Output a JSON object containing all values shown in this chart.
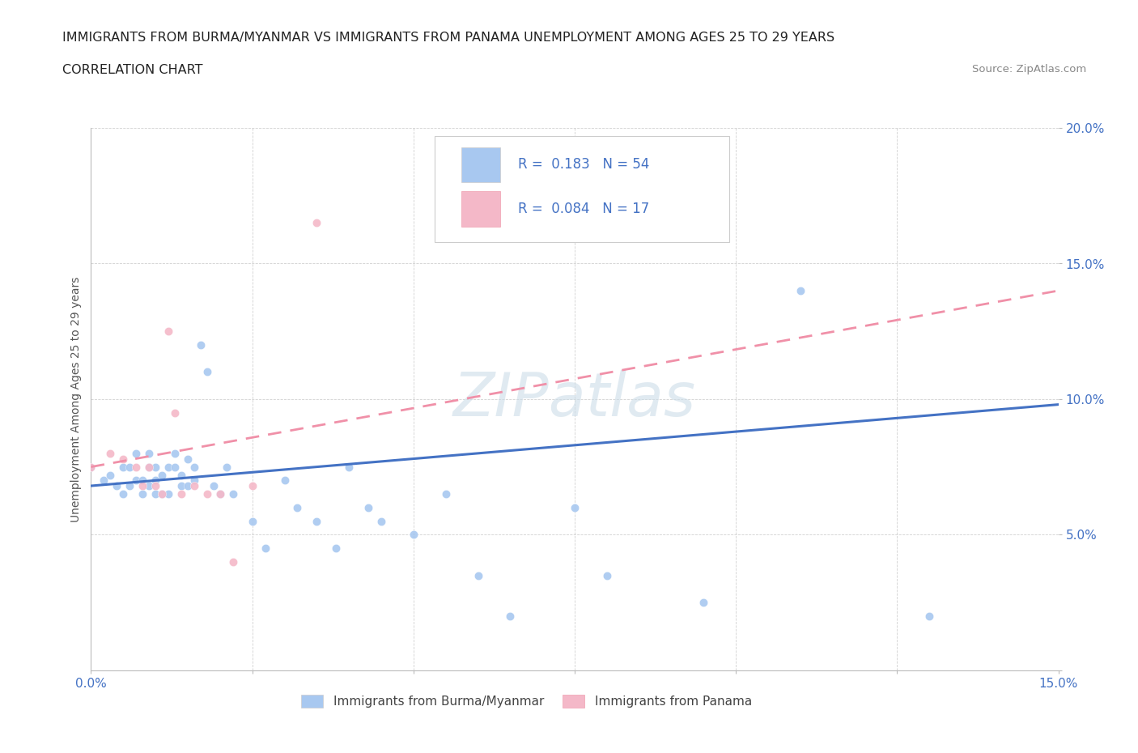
{
  "title_line1": "IMMIGRANTS FROM BURMA/MYANMAR VS IMMIGRANTS FROM PANAMA UNEMPLOYMENT AMONG AGES 25 TO 29 YEARS",
  "title_line2": "CORRELATION CHART",
  "source_text": "Source: ZipAtlas.com",
  "ylabel": "Unemployment Among Ages 25 to 29 years",
  "xlim": [
    0.0,
    0.15
  ],
  "ylim": [
    0.0,
    0.2
  ],
  "xticks": [
    0.0,
    0.025,
    0.05,
    0.075,
    0.1,
    0.125,
    0.15
  ],
  "yticks": [
    0.0,
    0.05,
    0.1,
    0.15,
    0.2
  ],
  "burma_R": 0.183,
  "burma_N": 54,
  "panama_R": 0.084,
  "panama_N": 17,
  "burma_color": "#a8c8f0",
  "panama_color": "#f4b8c8",
  "burma_line_color": "#4472c4",
  "panama_line_color": "#f090a8",
  "watermark_color": "#ccdde8",
  "burma_scatter_x": [
    0.0,
    0.002,
    0.003,
    0.004,
    0.005,
    0.005,
    0.006,
    0.006,
    0.007,
    0.007,
    0.008,
    0.008,
    0.009,
    0.009,
    0.009,
    0.01,
    0.01,
    0.01,
    0.011,
    0.011,
    0.012,
    0.012,
    0.013,
    0.013,
    0.014,
    0.014,
    0.015,
    0.015,
    0.016,
    0.016,
    0.017,
    0.018,
    0.019,
    0.02,
    0.021,
    0.022,
    0.025,
    0.027,
    0.03,
    0.032,
    0.035,
    0.038,
    0.04,
    0.043,
    0.045,
    0.05,
    0.055,
    0.06,
    0.065,
    0.075,
    0.08,
    0.095,
    0.11,
    0.13
  ],
  "burma_scatter_y": [
    0.075,
    0.07,
    0.072,
    0.068,
    0.065,
    0.075,
    0.068,
    0.075,
    0.07,
    0.08,
    0.065,
    0.07,
    0.068,
    0.075,
    0.08,
    0.065,
    0.07,
    0.075,
    0.065,
    0.072,
    0.065,
    0.075,
    0.08,
    0.075,
    0.068,
    0.072,
    0.068,
    0.078,
    0.07,
    0.075,
    0.12,
    0.11,
    0.068,
    0.065,
    0.075,
    0.065,
    0.055,
    0.045,
    0.07,
    0.06,
    0.055,
    0.045,
    0.075,
    0.06,
    0.055,
    0.05,
    0.065,
    0.035,
    0.02,
    0.06,
    0.035,
    0.025,
    0.14,
    0.02
  ],
  "panama_scatter_x": [
    0.0,
    0.003,
    0.005,
    0.007,
    0.008,
    0.009,
    0.01,
    0.011,
    0.012,
    0.013,
    0.014,
    0.016,
    0.018,
    0.02,
    0.022,
    0.025,
    0.035
  ],
  "panama_scatter_y": [
    0.075,
    0.08,
    0.078,
    0.075,
    0.068,
    0.075,
    0.068,
    0.065,
    0.125,
    0.095,
    0.065,
    0.068,
    0.065,
    0.065,
    0.04,
    0.068,
    0.165
  ],
  "burma_line_x0": 0.0,
  "burma_line_y0": 0.068,
  "burma_line_x1": 0.15,
  "burma_line_y1": 0.098,
  "panama_line_x0": 0.0,
  "panama_line_y0": 0.075,
  "panama_line_x1": 0.15,
  "panama_line_y1": 0.14
}
